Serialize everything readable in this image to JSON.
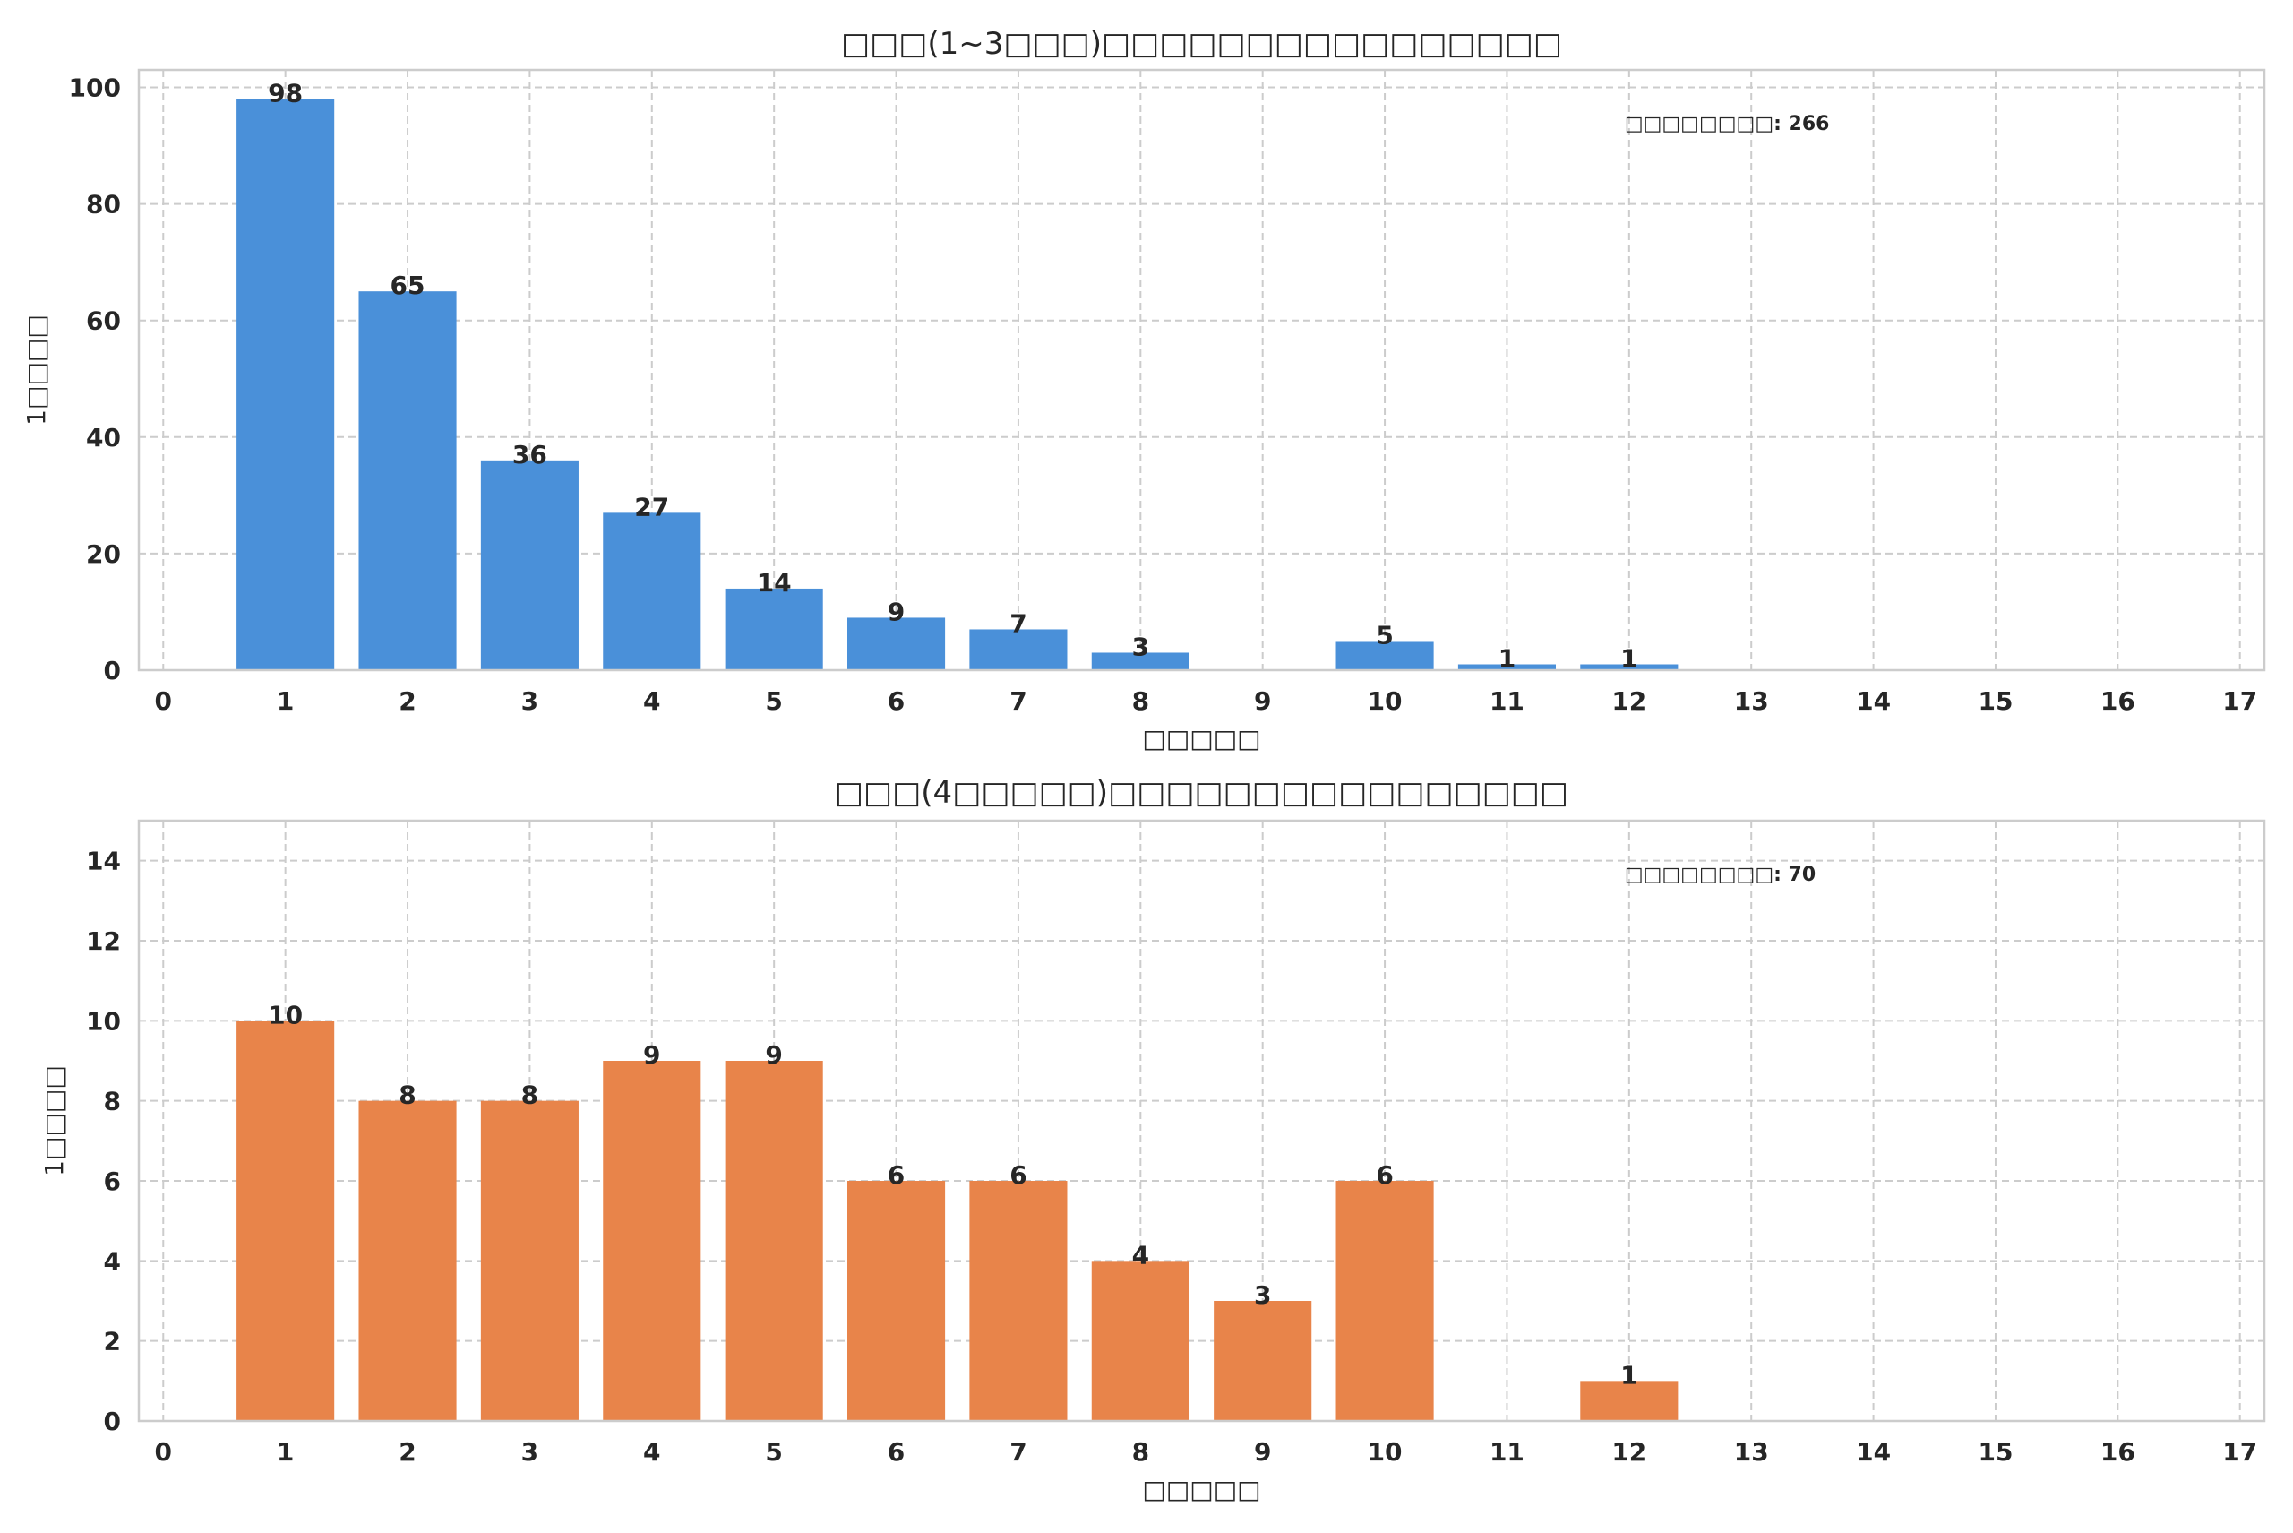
{
  "chart_data": [
    {
      "type": "bar",
      "title": "□□□(1~3□□□)□□□□□□□□□□□□□□□□",
      "xlabel": "□□□□□",
      "ylabel": "1□□□□",
      "x": [
        1,
        2,
        3,
        4,
        5,
        6,
        7,
        8,
        10,
        11,
        12
      ],
      "values": [
        98,
        65,
        36,
        27,
        14,
        9,
        7,
        3,
        5,
        1,
        1
      ],
      "data_labels": [
        "98",
        "65",
        "36",
        "27",
        "14",
        "9",
        "7",
        "3",
        "5",
        "1",
        "1"
      ],
      "xlim": [
        -0.2,
        17.2
      ],
      "ylim": [
        0,
        103
      ],
      "xticks": [
        "0",
        "1",
        "2",
        "3",
        "4",
        "5",
        "6",
        "7",
        "8",
        "9",
        "10",
        "11",
        "12",
        "13",
        "14",
        "15",
        "16",
        "17"
      ],
      "yticks": [
        "0",
        "20",
        "40",
        "60",
        "80",
        "100"
      ],
      "annotation": "□□□□□□□□: 266",
      "color": "#4a90d9",
      "grid": true
    },
    {
      "type": "bar",
      "title": "□□□(4□□□□□)□□□□□□□□□□□□□□□□",
      "xlabel": "□□□□□",
      "ylabel": "1□□□□",
      "x": [
        1,
        2,
        3,
        4,
        5,
        6,
        7,
        8,
        9,
        10,
        12
      ],
      "values": [
        10,
        8,
        8,
        9,
        9,
        6,
        6,
        4,
        3,
        6,
        1
      ],
      "data_labels": [
        "10",
        "8",
        "8",
        "9",
        "9",
        "6",
        "6",
        "4",
        "3",
        "6",
        "1"
      ],
      "xlim": [
        -0.2,
        17.2
      ],
      "ylim": [
        0,
        15
      ],
      "xticks": [
        "0",
        "1",
        "2",
        "3",
        "4",
        "5",
        "6",
        "7",
        "8",
        "9",
        "10",
        "11",
        "12",
        "13",
        "14",
        "15",
        "16",
        "17"
      ],
      "yticks": [
        "0",
        "2",
        "4",
        "6",
        "8",
        "10",
        "12",
        "14"
      ],
      "annotation": "□□□□□□□□: 70",
      "color": "#e8844a",
      "grid": true
    }
  ]
}
